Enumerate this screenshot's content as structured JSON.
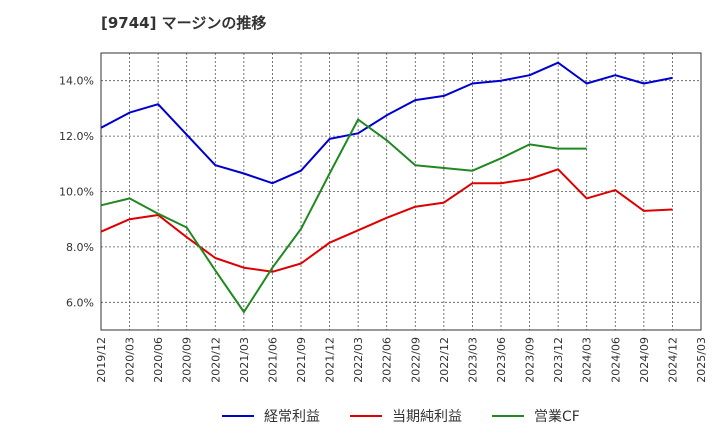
{
  "title": "[9744]  マージンの推移",
  "chart_data": {
    "type": "line",
    "title": "[9744]  マージンの推移",
    "xlabel": "",
    "ylabel": "",
    "x": [
      "2019/12",
      "2020/03",
      "2020/06",
      "2020/09",
      "2020/12",
      "2021/03",
      "2021/06",
      "2021/09",
      "2021/12",
      "2022/03",
      "2022/06",
      "2022/09",
      "2022/12",
      "2023/03",
      "2023/06",
      "2023/09",
      "2023/12",
      "2024/03",
      "2024/06",
      "2024/09",
      "2024/12",
      "2025/03"
    ],
    "ylim": [
      5.0,
      15.0
    ],
    "yticks": [
      6.0,
      8.0,
      10.0,
      12.0,
      14.0
    ],
    "ytick_labels": [
      "6.0%",
      "8.0%",
      "10.0%",
      "12.0%",
      "14.0%"
    ],
    "grid": true,
    "legend_position": "bottom",
    "series": [
      {
        "name": "経常利益",
        "color": "#0000cc",
        "values": [
          12.3,
          12.85,
          13.15,
          12.05,
          10.95,
          10.65,
          10.3,
          10.75,
          11.9,
          12.1,
          12.75,
          13.3,
          13.45,
          13.9,
          14.0,
          14.2,
          14.65,
          13.9,
          14.2,
          13.9,
          14.1,
          null
        ]
      },
      {
        "name": "当期純利益",
        "color": "#dd0000",
        "values": [
          8.55,
          9.0,
          9.15,
          8.35,
          7.6,
          7.25,
          7.1,
          7.4,
          8.15,
          8.6,
          9.05,
          9.45,
          9.6,
          10.3,
          10.3,
          10.45,
          10.8,
          9.75,
          10.05,
          9.3,
          9.35,
          null
        ]
      },
      {
        "name": "営業CF",
        "color": "#228822",
        "values": [
          9.5,
          9.75,
          9.2,
          8.7,
          7.15,
          5.65,
          7.25,
          8.65,
          10.65,
          12.6,
          11.85,
          10.95,
          10.85,
          10.75,
          11.2,
          11.7,
          11.55,
          11.55,
          null,
          null,
          null,
          null
        ]
      }
    ]
  }
}
